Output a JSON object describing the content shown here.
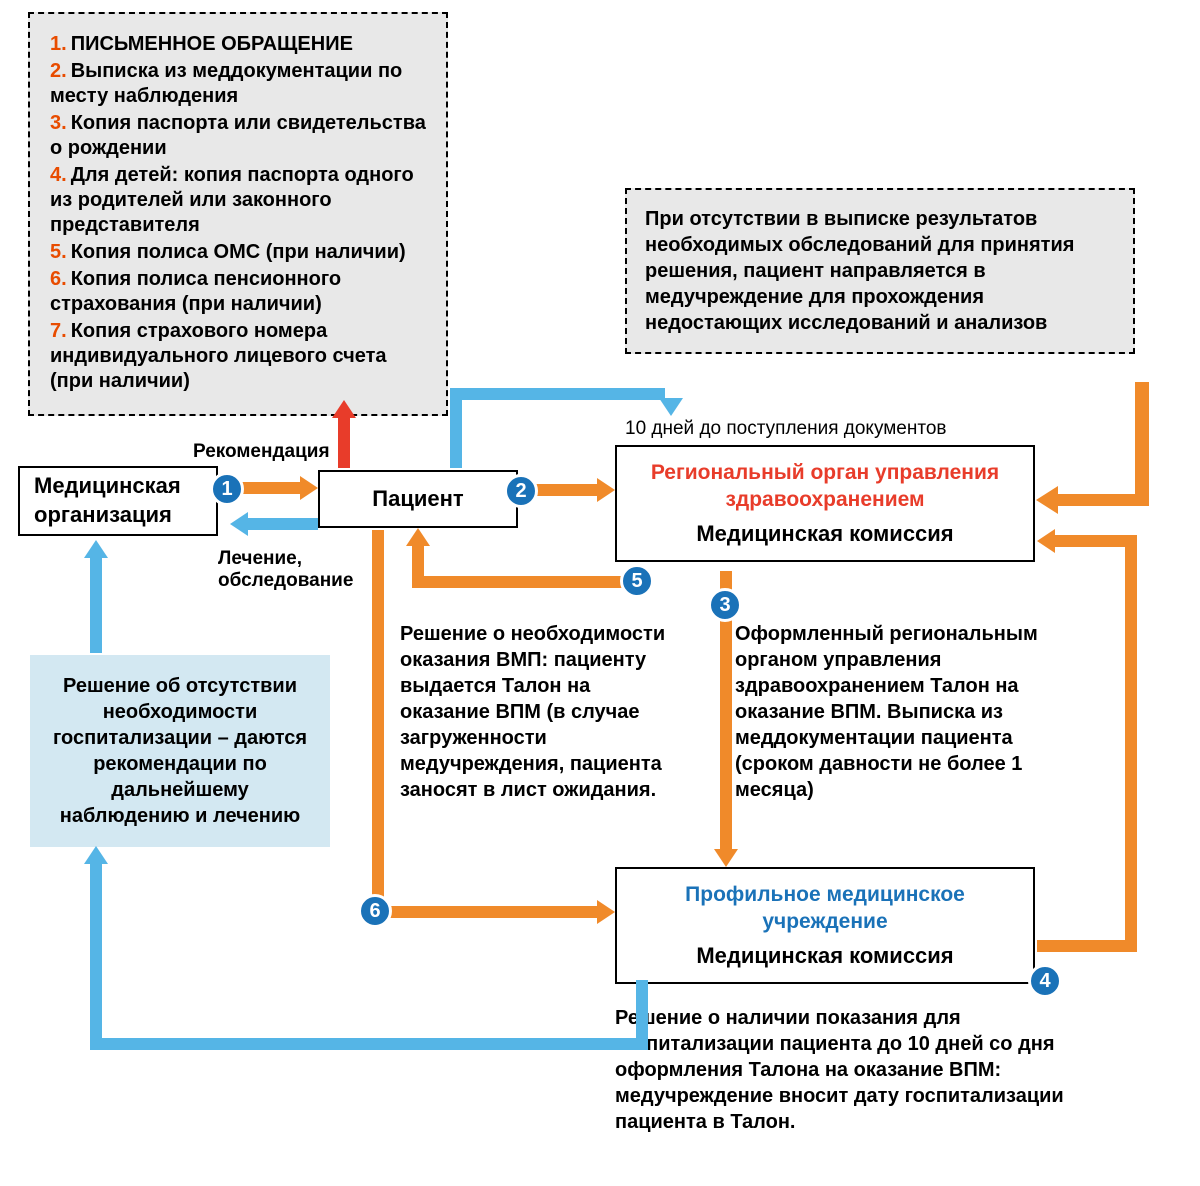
{
  "colors": {
    "orange": "#f08a2a",
    "blue": "#55b5e6",
    "darkblue": "#1a72b8",
    "red": "#e83c2a",
    "listnum": "#e84c00",
    "boxgray": "#e8e8e8",
    "lightblue": "#d3e8f2",
    "titleblue": "#1a72b8",
    "titlered": "#e83c2a"
  },
  "documents_box": {
    "items": [
      {
        "n": "1.",
        "t": "ПИСЬМЕННОЕ ОБРАЩЕНИЕ"
      },
      {
        "n": "2.",
        "t": "Выписка из меддокументации по месту наблюдения"
      },
      {
        "n": "3.",
        "t": "Копия паспорта или свидетельства о рождении"
      },
      {
        "n": "4.",
        "t": "Для детей: копия паспорта одного из родителей или законного представителя"
      },
      {
        "n": "5.",
        "t": "Копия полиса ОМС (при наличии)"
      },
      {
        "n": "6.",
        "t": "Копия полиса пенсионного страхования (при наличии)"
      },
      {
        "n": "7.",
        "t": "Копия страхового номера индивидуального лицевого счета (при наличии)"
      }
    ]
  },
  "missing_box": "При отсутствии в выписке результатов необходимых обследований для принятия решения, пациент направляется в медучреждение для прохождения недостающих исследований и анализов",
  "deadline_label": "10 дней до поступления документов",
  "nodes": {
    "med_org": "Медицинская организация",
    "patient": "Пациент",
    "regional_title": "Региональный орган управления здравоохранением",
    "regional_sub": "Медицинская комиссия",
    "profile_title": "Профильное медицинское учреждение",
    "profile_sub": "Медицинская комиссия"
  },
  "labels": {
    "recommendation": "Рекомендация",
    "treatment": "Лечение, обследование"
  },
  "decision_box": "Решение об отсутствии необходимости госпитализации – даются рекомендации по дальнейшему наблюдению и лечению",
  "text_5": "Решение о необходимости оказания ВМП: пациенту выдается Талон на оказание ВПМ (в случае загруженности медучреждения, пациента заносят в лист ожидания.",
  "text_3": "Оформленный региональным органом управления здравоохранением Талон на оказание ВПМ. Выписка из меддокументации пациента (сроком давности не более 1 месяца)",
  "text_bottom": "Решение о наличии показания для госпитализации пациента до 10 дней со дня оформления Талона на оказание ВПМ: медучреждение вносит дату госпитализации пациента в Талон.",
  "badges": {
    "1": "1",
    "2": "2",
    "3": "3",
    "4": "4",
    "5": "5",
    "6": "6"
  }
}
